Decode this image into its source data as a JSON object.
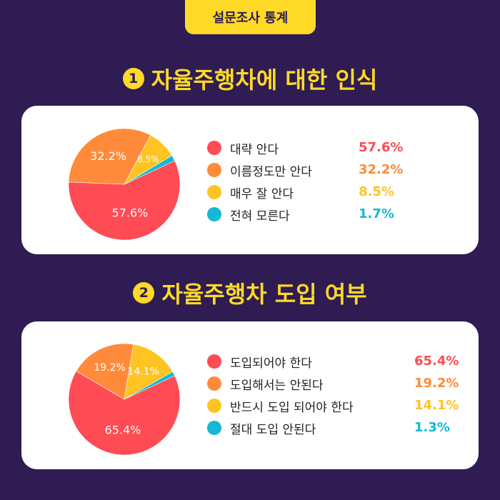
{
  "header": {
    "badge": "설문조사 통계"
  },
  "sections": [
    {
      "number": "1",
      "title": "자율주행차에 대한 인식"
    },
    {
      "number": "2",
      "title": "자율주행차 도입 여부"
    }
  ],
  "chart_data": [
    {
      "type": "pie",
      "title": "자율주행차에 대한 인식",
      "categories": [
        "대략 안다",
        "이름정도만 안다",
        "매우 잘 안다",
        "전혀 모른다"
      ],
      "values": [
        57.6,
        32.2,
        8.5,
        1.7
      ],
      "labels": [
        "57.6%",
        "32.2%",
        "8.5%",
        "1.7%"
      ],
      "colors": [
        "#ff4b54",
        "#ff8a3a",
        "#ffc322",
        "#14b8d6"
      ],
      "legend": "right"
    },
    {
      "type": "pie",
      "title": "자율주행차 도입 여부",
      "categories": [
        "도입되어야 한다",
        "도입해서는 안된다",
        "반드시 도입 되어야 한다",
        "절대 도입 안된다"
      ],
      "values": [
        65.4,
        19.2,
        14.1,
        1.3
      ],
      "labels": [
        "65.4%",
        "19.2%",
        "14.1%",
        "1.3%"
      ],
      "colors": [
        "#ff4b54",
        "#ff8a3a",
        "#ffc322",
        "#14b8d6"
      ],
      "legend": "right"
    }
  ]
}
